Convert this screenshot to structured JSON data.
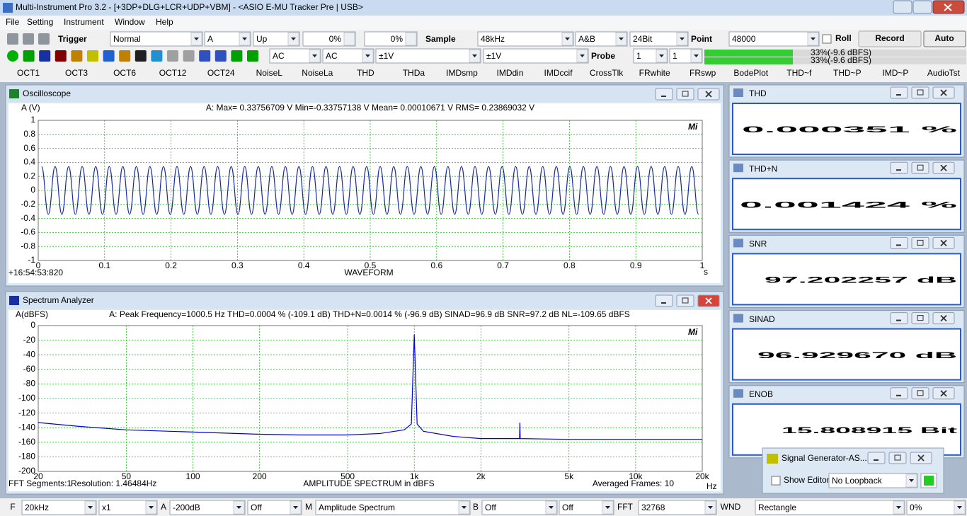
{
  "title_bar": {
    "title": "Multi-Instrument Pro 3.2   -   [+3DP+DLG+LCR+UDP+VBM]   -   <ASIO E-MU Tracker Pre | USB>"
  },
  "menu": [
    "File",
    "Setting",
    "Instrument",
    "Window",
    "Help"
  ],
  "toolbar": {
    "trigger_label": "Trigger",
    "trigger_mode": "Normal",
    "channel": "A",
    "edge": "Up",
    "level1": "0%",
    "level2": "0%",
    "sample_label": "Sample",
    "sample_rate": "48kHz",
    "channels": "A&B",
    "bits": "24Bit",
    "point_label": "Point",
    "points": "48000",
    "roll": "Roll",
    "record": "Record",
    "auto": "Auto"
  },
  "toolbar2": {
    "coupling_a": "AC",
    "coupling_b": "AC",
    "range_a": "±1V",
    "range_b": "±1V",
    "probe_label": "Probe",
    "probe_a": "1",
    "probe_b": "1",
    "level_a": "33%(-9.6 dBFS)",
    "level_b": "33%(-9.6 dBFS)"
  },
  "presets": [
    "OCT1",
    "OCT3",
    "OCT6",
    "OCT12",
    "OCT24",
    "NoiseL",
    "NoiseLa",
    "THD",
    "THDa",
    "IMDsmp",
    "IMDdin",
    "IMDccif",
    "CrossTlk",
    "FRwhite",
    "FRswp",
    "BodePlot",
    "THD~f",
    "THD~P",
    "IMD~P",
    "AudioTst"
  ],
  "chart_data": [
    {
      "type": "line",
      "window_title": "Oscilloscope",
      "ylabel": "A (V)",
      "stats": "A: Max= 0.33756709 V  Min=-0.33757138 V  Mean= 0.00010671 V  RMS= 0.23869032 V",
      "xlabel": "WAVEFORM",
      "x_unit": "s",
      "timestamp": "+16:54:53:820",
      "logo": "Mi",
      "color": "#1a2a9a",
      "grid": true,
      "xscale": "linear",
      "xlim": [
        0,
        1
      ],
      "ylim": [
        -1,
        1
      ],
      "xticks": [
        0,
        0.1,
        0.2,
        0.3,
        0.4,
        0.5,
        0.6,
        0.7,
        0.8,
        0.9,
        1
      ],
      "yticks": [
        -1,
        -0.8,
        -0.6,
        -0.4,
        -0.2,
        0,
        0.2,
        0.4,
        0.6,
        0.8,
        1
      ],
      "x": [
        0.005,
        0.0152,
        0.0254,
        0.0356,
        0.0458,
        0.056,
        0.0662,
        0.0764,
        0.0866,
        0.0968,
        0.107,
        0.1172,
        0.1274,
        0.1376,
        0.1478,
        0.158,
        0.1682,
        0.1784,
        0.1886,
        0.1988,
        0.209,
        0.2192,
        0.2294,
        0.2396,
        0.2498,
        0.26,
        0.2702,
        0.2804,
        0.2906,
        0.3008,
        0.311,
        0.3212,
        0.3314,
        0.3416,
        0.3518,
        0.362,
        0.3722,
        0.3824,
        0.3926,
        0.4028,
        0.413,
        0.4232,
        0.4334,
        0.4436,
        0.4538,
        0.464,
        0.4742,
        0.4844,
        0.4946,
        0.5048,
        0.515,
        0.5252,
        0.5354,
        0.5456,
        0.5558,
        0.566,
        0.5762,
        0.5864,
        0.5966,
        0.6068,
        0.617,
        0.6272,
        0.6374,
        0.6476,
        0.6578,
        0.668,
        0.6782,
        0.6884,
        0.6986,
        0.7088,
        0.719,
        0.7292,
        0.7394,
        0.7496,
        0.7598,
        0.77,
        0.7802,
        0.7904,
        0.8006,
        0.8108,
        0.821,
        0.8312,
        0.8414,
        0.8516,
        0.8618,
        0.872,
        0.8822,
        0.8924,
        0.9026,
        0.9128,
        0.923,
        0.9332,
        0.9434,
        0.9536,
        0.9638,
        0.974,
        0.9842,
        0.9944
      ],
      "values": [
        0.34,
        -0.34,
        0.34,
        -0.34,
        0.34,
        -0.34,
        0.34,
        -0.34,
        0.34,
        -0.34,
        0.34,
        -0.34,
        0.34,
        -0.34,
        0.34,
        -0.34,
        0.34,
        -0.34,
        0.34,
        -0.34,
        0.34,
        -0.34,
        0.34,
        -0.34,
        0.34,
        -0.34,
        0.34,
        -0.34,
        0.34,
        -0.34,
        0.34,
        -0.34,
        0.34,
        -0.34,
        0.34,
        -0.34,
        0.34,
        -0.34,
        0.34,
        -0.34,
        0.34,
        -0.34,
        0.34,
        -0.34,
        0.34,
        -0.34,
        0.34,
        -0.34,
        0.34,
        -0.34,
        0.34,
        -0.34,
        0.34,
        -0.34,
        0.34,
        -0.34,
        0.34,
        -0.34,
        0.34,
        -0.34,
        0.34,
        -0.34,
        0.34,
        -0.34,
        0.34,
        -0.34,
        0.34,
        -0.34,
        0.34,
        -0.34,
        0.34,
        -0.34,
        0.34,
        -0.34,
        0.34,
        -0.34,
        0.34,
        -0.34,
        0.34,
        -0.34,
        0.34,
        -0.34,
        0.34,
        -0.34,
        0.34,
        -0.34,
        0.34,
        -0.34,
        0.34,
        -0.34,
        0.34,
        -0.34,
        0.34,
        -0.34,
        0.34,
        -0.34,
        0.34,
        -0.34
      ]
    },
    {
      "type": "line",
      "window_title": "Spectrum Analyzer",
      "ylabel": "A(dBFS)",
      "stats": "A: Peak Frequency=1000.5 Hz  THD=0.0004 % (-109.1 dB)  THD+N=0.0014 % (-96.9 dB)  SINAD=96.9 dB  SNR=97.2 dB  NL=-109.65 dBFS",
      "xlabel": "AMPLITUDE SPECTRUM in dBFS",
      "x_unit": "Hz",
      "footer_left": "FFT  Segments:1",
      "resolution": "Resolution: 1.46484Hz",
      "averaged": "Averaged Frames: 10",
      "logo": "Mi",
      "color": "#0000d0",
      "grid": true,
      "xscale": "log",
      "xlim": [
        20,
        20000
      ],
      "ylim": [
        -200,
        0
      ],
      "xticks": [
        20,
        50,
        100,
        200,
        500,
        {
          "value": 1000,
          "label": "1k"
        },
        {
          "value": 2000,
          "label": "2k"
        },
        {
          "value": 5000,
          "label": "5k"
        },
        {
          "value": 10000,
          "label": "10k"
        },
        {
          "value": 20000,
          "label": "20k"
        }
      ],
      "yticks": [
        -200,
        -180,
        -160,
        -140,
        -120,
        -100,
        -80,
        -60,
        -40,
        -20,
        0
      ],
      "x": [
        20,
        30,
        50,
        100,
        200,
        300,
        500,
        700,
        900,
        970,
        1000,
        1030,
        1100,
        1500,
        2000,
        2990,
        3000,
        3010,
        5000,
        10000,
        20000
      ],
      "values": [
        -133,
        -138,
        -143,
        -146,
        -149,
        -150,
        -150,
        -148,
        -143,
        -135,
        -12,
        -135,
        -145,
        -152,
        -155,
        -155,
        -133,
        -155,
        -156,
        -156,
        -156
      ]
    }
  ],
  "meters": [
    {
      "title": "THD",
      "value": "0.000351 %"
    },
    {
      "title": "THD+N",
      "value": "0.001424 %"
    },
    {
      "title": "SNR",
      "value": "97.202257 dB"
    },
    {
      "title": "SINAD",
      "value": "96.929670 dB"
    },
    {
      "title": "ENOB",
      "value": "15.808915 Bit"
    }
  ],
  "signal_generator": {
    "title": "Signal Generator-AS...",
    "show_editor": "Show Editor",
    "mode": "No Loopback"
  },
  "status_bar": {
    "f_label": "F",
    "f_value": "20kHz",
    "multiplier": "x1",
    "a_label": "A",
    "a_range": "-200dB",
    "a_mode": "Off",
    "m_label": "M",
    "m_value": "Amplitude Spectrum",
    "b_label": "B",
    "b_mode": "Off",
    "b_mode2": "Off",
    "fft_label": "FFT",
    "fft_size": "32768",
    "wnd_label": "WND",
    "window": "Rectangle",
    "overlap": "0%"
  }
}
